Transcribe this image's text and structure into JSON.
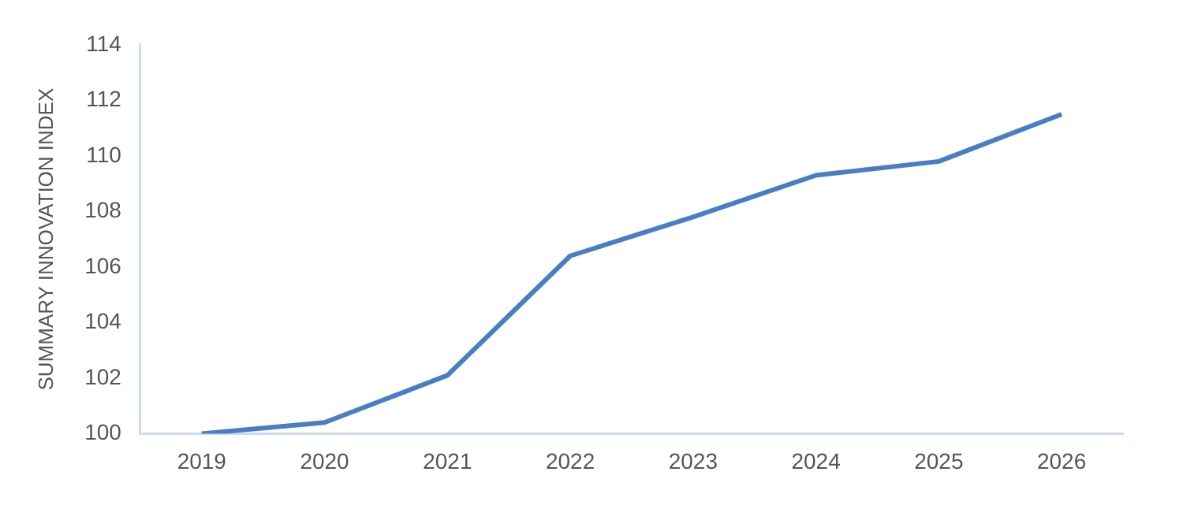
{
  "chart_data": {
    "type": "line",
    "ylabel": "SUMMARY INNOVATION INDEX",
    "categories": [
      "2019",
      "2020",
      "2021",
      "2022",
      "2023",
      "2024",
      "2025",
      "2026"
    ],
    "series": [
      {
        "color": "#4a7ec4",
        "values": [
          100,
          100.4,
          102.1,
          106.4,
          107.8,
          109.3,
          109.8,
          111.5
        ]
      }
    ],
    "ylim": [
      100,
      114
    ],
    "yticks": [
      100,
      102,
      104,
      106,
      108,
      110,
      112,
      114
    ],
    "grid": false,
    "legend": false,
    "marker": "none",
    "line_style": "solid"
  }
}
